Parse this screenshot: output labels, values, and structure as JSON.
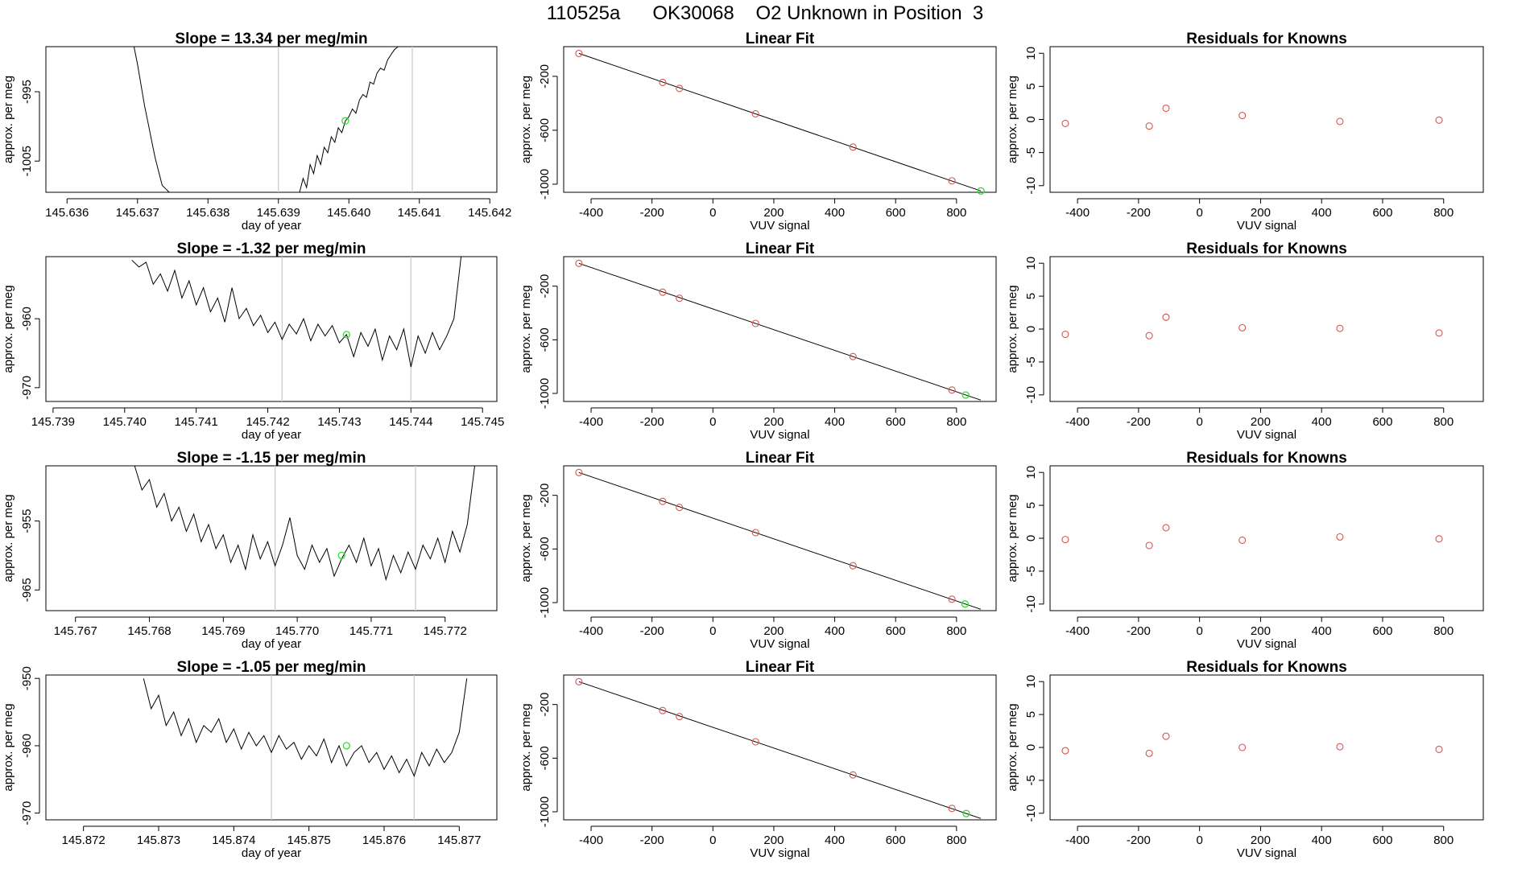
{
  "page": {
    "title": "110525a      OK30068    O2 Unknown in Position  3"
  },
  "labels": {
    "trace_xlabel": "day of year",
    "trace_ylabel": "approx. per meg",
    "fit_title": "Linear Fit",
    "fit_xlabel": "VUV signal",
    "fit_ylabel": "approx. per meg",
    "resid_title": "Residuals for Knowns",
    "resid_xlabel": "VUV signal",
    "resid_ylabel": "approx. per meg"
  },
  "colors": {
    "trace_line": "#000000",
    "vertical_marker": "#c8c8c8",
    "known_points": "#d9534f",
    "unknown_point": "#33dd33",
    "fit_line": "#000000"
  },
  "chart_data": [
    {
      "type": "line",
      "row": 1,
      "title": "Slope =  13.34  per meg/min",
      "xlabel": "day of year",
      "ylabel": "approx. per meg",
      "xlim": [
        145.6357,
        145.6421
      ],
      "ylim": [
        -1009.5,
        -988.5
      ],
      "xticks": [
        "145.636",
        "145.637",
        "145.638",
        "145.639",
        "145.640",
        "145.641",
        "145.642"
      ],
      "yticks": [
        "-995",
        "-1005"
      ],
      "vlines": [
        145.639,
        145.6409
      ],
      "unknown_point": [
        145.63995,
        -999.2
      ],
      "series": [
        {
          "x": [
            145.63695,
            145.637,
            145.63705,
            145.6371,
            145.63715,
            145.6372,
            145.63725,
            145.6373,
            145.63735,
            145.6374,
            145.63745
          ],
          "y": [
            -988.5,
            -991,
            -994,
            -997,
            -999.5,
            -1002,
            -1004.5,
            -1006.5,
            -1008.5,
            -1009,
            -1009.5
          ]
        },
        {
          "x": [
            145.6393,
            145.63935,
            145.6394,
            145.63945,
            145.6395,
            145.63955,
            145.6396,
            145.63965,
            145.6397,
            145.63975,
            145.6398,
            145.63985,
            145.6399,
            145.63995,
            145.64,
            145.64005,
            145.6401,
            145.64015,
            145.6402,
            145.64025,
            145.6403,
            145.64035,
            145.6404,
            145.64045,
            145.6405,
            145.64055,
            145.6406,
            145.64065,
            145.6407
          ],
          "y": [
            -1009.5,
            -1007.5,
            -1008.8,
            -1005.5,
            -1006.8,
            -1004.2,
            -1005.5,
            -1003,
            -1003.8,
            -1001.5,
            -1002.3,
            -1000.2,
            -1000.9,
            -999.2,
            -998.6,
            -997.5,
            -998.1,
            -996.2,
            -995.4,
            -995.8,
            -993.6,
            -993.9,
            -992.3,
            -991.6,
            -991.9,
            -990.4,
            -989.6,
            -988.9,
            -988.5
          ]
        }
      ]
    },
    {
      "type": "scatter",
      "row": 1,
      "title": "Linear Fit",
      "xlabel": "VUV signal",
      "ylabel": "approx. per meg",
      "xlim": [
        -490,
        930
      ],
      "ylim": [
        -1060,
        20
      ],
      "xticks": [
        -400,
        -200,
        0,
        200,
        400,
        600,
        800
      ],
      "yticks": [
        -200,
        -600,
        -1000
      ],
      "known_points": {
        "x": [
          -440,
          -165,
          -110,
          140,
          460,
          785
        ],
        "y": [
          -30,
          -245,
          -290,
          -478,
          -725,
          -975
        ]
      },
      "unknown_point": [
        880,
        -1050
      ],
      "fit_line": {
        "x": [
          -440,
          880
        ],
        "y": [
          -30,
          -1050
        ]
      }
    },
    {
      "type": "scatter",
      "row": 1,
      "title": "Residuals for Knowns",
      "xlabel": "VUV signal",
      "ylabel": "approx. per meg",
      "xlim": [
        -490,
        930
      ],
      "ylim": [
        -11,
        11
      ],
      "xticks": [
        -400,
        -200,
        0,
        200,
        400,
        600,
        800
      ],
      "yticks": [
        10,
        5,
        0,
        -5,
        -10
      ],
      "known_points": {
        "x": [
          -440,
          -165,
          -110,
          140,
          460,
          785
        ],
        "y": [
          -0.6,
          -1.0,
          1.7,
          0.6,
          -0.3,
          -0.1
        ]
      }
    },
    {
      "type": "line",
      "row": 2,
      "title": "Slope =  -1.32  per meg/min",
      "xlabel": "day of year",
      "ylabel": "approx. per meg",
      "xlim": [
        145.7389,
        145.7452
      ],
      "ylim": [
        -972,
        -951
      ],
      "xticks": [
        "145.739",
        "145.740",
        "145.741",
        "145.742",
        "145.743",
        "145.744",
        "145.745"
      ],
      "yticks": [
        "-960",
        "-970"
      ],
      "vlines": [
        145.7422,
        145.744
      ],
      "unknown_point": [
        145.7431,
        -962.3
      ],
      "series": [
        {
          "x": [
            145.7401,
            145.7402,
            145.7403,
            145.7404,
            145.7405,
            145.7406,
            145.7407,
            145.7408,
            145.7409,
            145.741,
            145.7411,
            145.7412,
            145.7413,
            145.7414,
            145.7415,
            145.7416,
            145.7417,
            145.7418,
            145.7419,
            145.742,
            145.7421,
            145.7422,
            145.7423,
            145.7424,
            145.7425,
            145.7426,
            145.7427,
            145.7428,
            145.7429,
            145.743,
            145.7431,
            145.7432,
            145.7433,
            145.7434,
            145.7435,
            145.7436,
            145.7437,
            145.7438,
            145.7439,
            145.744,
            145.7441,
            145.7442,
            145.7443,
            145.7444,
            145.7445,
            145.7446,
            145.7447
          ],
          "y": [
            -951.5,
            -952.5,
            -951.8,
            -955,
            -953.5,
            -956,
            -953,
            -957,
            -954.5,
            -958,
            -955.5,
            -959,
            -957,
            -960.5,
            -955.5,
            -960,
            -958.5,
            -961,
            -959.5,
            -962,
            -960.5,
            -963,
            -960.8,
            -962.2,
            -960,
            -963.2,
            -960.8,
            -962.5,
            -961,
            -963.5,
            -962.3,
            -965.5,
            -962,
            -964,
            -961.5,
            -966,
            -962.5,
            -964.5,
            -961.5,
            -967,
            -962.5,
            -965,
            -962,
            -964.5,
            -962.5,
            -960,
            -951
          ]
        }
      ]
    },
    {
      "type": "scatter",
      "row": 2,
      "title": "Linear Fit",
      "xlabel": "VUV signal",
      "ylabel": "approx. per meg",
      "xlim": [
        -490,
        930
      ],
      "ylim": [
        -1060,
        20
      ],
      "xticks": [
        -400,
        -200,
        0,
        200,
        400,
        600,
        800
      ],
      "yticks": [
        -200,
        -600,
        -1000
      ],
      "known_points": {
        "x": [
          -440,
          -165,
          -110,
          140,
          460,
          785
        ],
        "y": [
          -30,
          -245,
          -290,
          -478,
          -725,
          -975
        ]
      },
      "unknown_point": [
        830,
        -1012
      ],
      "fit_line": {
        "x": [
          -440,
          880
        ],
        "y": [
          -30,
          -1050
        ]
      }
    },
    {
      "type": "scatter",
      "row": 2,
      "title": "Residuals for Knowns",
      "xlabel": "VUV signal",
      "ylabel": "approx. per meg",
      "xlim": [
        -490,
        930
      ],
      "ylim": [
        -11,
        11
      ],
      "xticks": [
        -400,
        -200,
        0,
        200,
        400,
        600,
        800
      ],
      "yticks": [
        10,
        5,
        0,
        -5,
        -10
      ],
      "known_points": {
        "x": [
          -440,
          -165,
          -110,
          140,
          460,
          785
        ],
        "y": [
          -0.8,
          -1.0,
          1.8,
          0.2,
          0.1,
          -0.6
        ]
      }
    },
    {
      "type": "line",
      "row": 3,
      "title": "Slope =  -1.15  per meg/min",
      "xlabel": "day of year",
      "ylabel": "approx. per meg",
      "xlim": [
        145.7666,
        145.7727
      ],
      "ylim": [
        -968,
        -947
      ],
      "xticks": [
        "145.767",
        "145.768",
        "145.769",
        "145.770",
        "145.771",
        "145.772"
      ],
      "yticks": [
        "-955",
        "-965"
      ],
      "vlines": [
        145.7697,
        145.7716
      ],
      "unknown_point": [
        145.7706,
        -960
      ],
      "series": [
        {
          "x": [
            145.7678,
            145.7679,
            145.768,
            145.7681,
            145.7682,
            145.7683,
            145.7684,
            145.7685,
            145.7686,
            145.7687,
            145.7688,
            145.7689,
            145.769,
            145.7691,
            145.7692,
            145.7693,
            145.7694,
            145.7695,
            145.7696,
            145.7697,
            145.7698,
            145.7699,
            145.77,
            145.7701,
            145.7702,
            145.7703,
            145.7704,
            145.7705,
            145.7706,
            145.7707,
            145.7708,
            145.7709,
            145.771,
            145.7711,
            145.7712,
            145.7713,
            145.7714,
            145.7715,
            145.7716,
            145.7717,
            145.7718,
            145.7719,
            145.772,
            145.7721,
            145.7722,
            145.7723,
            145.7724
          ],
          "y": [
            -947,
            -950.5,
            -949,
            -953,
            -951,
            -955,
            -953,
            -956.5,
            -954,
            -958,
            -955.5,
            -959,
            -957,
            -961,
            -958.5,
            -962,
            -957,
            -960.5,
            -958,
            -961.5,
            -958.5,
            -954.5,
            -960,
            -962,
            -958.5,
            -961,
            -959,
            -963,
            -960.5,
            -958.5,
            -961,
            -957.5,
            -961.5,
            -959,
            -963.5,
            -960,
            -962.5,
            -959.5,
            -962,
            -958.5,
            -960.5,
            -957.5,
            -961,
            -956.5,
            -959.5,
            -955.5,
            -947
          ]
        }
      ]
    },
    {
      "type": "scatter",
      "row": 3,
      "title": "Linear Fit",
      "xlabel": "VUV signal",
      "ylabel": "approx. per meg",
      "xlim": [
        -490,
        930
      ],
      "ylim": [
        -1060,
        20
      ],
      "xticks": [
        -400,
        -200,
        0,
        200,
        400,
        600,
        800
      ],
      "yticks": [
        -200,
        -600,
        -1000
      ],
      "known_points": {
        "x": [
          -440,
          -165,
          -110,
          140,
          460,
          785
        ],
        "y": [
          -30,
          -245,
          -290,
          -478,
          -725,
          -975
        ]
      },
      "unknown_point": [
        828,
        -1010
      ],
      "fit_line": {
        "x": [
          -440,
          880
        ],
        "y": [
          -30,
          -1050
        ]
      }
    },
    {
      "type": "scatter",
      "row": 3,
      "title": "Residuals for Knowns",
      "xlabel": "VUV signal",
      "ylabel": "approx. per meg",
      "xlim": [
        -490,
        930
      ],
      "ylim": [
        -11,
        11
      ],
      "xticks": [
        -400,
        -200,
        0,
        200,
        400,
        600,
        800
      ],
      "yticks": [
        10,
        5,
        0,
        -5,
        -10
      ],
      "known_points": {
        "x": [
          -440,
          -165,
          -110,
          140,
          460,
          785
        ],
        "y": [
          -0.2,
          -1.1,
          1.6,
          -0.3,
          0.2,
          -0.1
        ]
      }
    },
    {
      "type": "line",
      "row": 4,
      "title": "Slope =  -1.05  per meg/min",
      "xlabel": "day of year",
      "ylabel": "approx. per meg",
      "xlim": [
        145.8715,
        145.8775
      ],
      "ylim": [
        -971,
        -949.5
      ],
      "xticks": [
        "145.872",
        "145.873",
        "145.874",
        "145.875",
        "145.876",
        "145.877"
      ],
      "yticks": [
        "-950",
        "-960",
        "-970"
      ],
      "vlines": [
        145.8745,
        145.8764
      ],
      "unknown_point": [
        145.8755,
        -960
      ],
      "series": [
        {
          "x": [
            145.8728,
            145.8729,
            145.873,
            145.8731,
            145.8732,
            145.8733,
            145.8734,
            145.8735,
            145.8736,
            145.8737,
            145.8738,
            145.8739,
            145.874,
            145.8741,
            145.8742,
            145.8743,
            145.8744,
            145.8745,
            145.8746,
            145.8747,
            145.8748,
            145.8749,
            145.875,
            145.8751,
            145.8752,
            145.8753,
            145.8754,
            145.8755,
            145.8756,
            145.8757,
            145.8758,
            145.8759,
            145.876,
            145.8761,
            145.8762,
            145.8763,
            145.8764,
            145.8765,
            145.8766,
            145.8767,
            145.8768,
            145.8769,
            145.877,
            145.8771
          ],
          "y": [
            -950,
            -954.5,
            -952.5,
            -957,
            -955,
            -958.5,
            -956,
            -959.5,
            -957,
            -958,
            -956,
            -959.5,
            -957.5,
            -960.5,
            -958,
            -960,
            -958.5,
            -961,
            -958.5,
            -960.5,
            -959.5,
            -962,
            -960,
            -961.5,
            -959,
            -962.5,
            -960,
            -963,
            -961,
            -960,
            -962.5,
            -961,
            -963.5,
            -961.5,
            -964,
            -962,
            -964.5,
            -961,
            -963,
            -960.5,
            -962.5,
            -961,
            -958,
            -950
          ]
        }
      ]
    },
    {
      "type": "scatter",
      "row": 4,
      "title": "Linear Fit",
      "xlabel": "VUV signal",
      "ylabel": "approx. per meg",
      "xlim": [
        -490,
        930
      ],
      "ylim": [
        -1060,
        20
      ],
      "xticks": [
        -400,
        -200,
        0,
        200,
        400,
        600,
        800
      ],
      "yticks": [
        -200,
        -600,
        -1000
      ],
      "known_points": {
        "x": [
          -440,
          -165,
          -110,
          140,
          460,
          785
        ],
        "y": [
          -30,
          -245,
          -290,
          -478,
          -725,
          -975
        ]
      },
      "unknown_point": [
        832,
        -1013
      ],
      "fit_line": {
        "x": [
          -440,
          880
        ],
        "y": [
          -30,
          -1050
        ]
      }
    },
    {
      "type": "scatter",
      "row": 4,
      "title": "Residuals for Knowns",
      "xlabel": "VUV signal",
      "ylabel": "approx. per meg",
      "xlim": [
        -490,
        930
      ],
      "ylim": [
        -11,
        11
      ],
      "xticks": [
        -400,
        -200,
        0,
        200,
        400,
        600,
        800
      ],
      "yticks": [
        10,
        5,
        0,
        -5,
        -10
      ],
      "known_points": {
        "x": [
          -440,
          -165,
          -110,
          140,
          460,
          785
        ],
        "y": [
          -0.5,
          -0.9,
          1.7,
          0.0,
          0.1,
          -0.3
        ]
      }
    }
  ]
}
